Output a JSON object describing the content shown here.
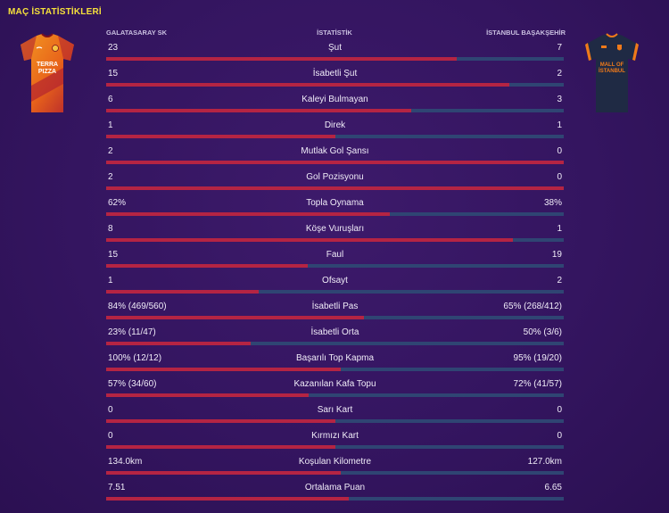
{
  "title": "MAÇ İSTATİSTİKLERİ",
  "header": {
    "home_team": "GALATASARAY SK",
    "column_title": "İSTATİSTİK",
    "away_team": "İSTANBUL BAŞAKŞEHİR"
  },
  "home_kit": {
    "sponsor_line1": "TERRA",
    "sponsor_line2": "PIZZA",
    "colors": [
      "#f07a1a",
      "#b3232f"
    ]
  },
  "away_kit": {
    "sponsor_line1": "MALL OF",
    "sponsor_line2": "İSTANBUL",
    "colors": [
      "#1f2a44",
      "#f07a1a"
    ]
  },
  "colors": {
    "home_bar": "#b52443",
    "away_bar": "#2f4573",
    "title": "#f5e03b"
  },
  "stats": [
    {
      "label": "Şut",
      "home": "23",
      "away": "7",
      "home_share": 0.767
    },
    {
      "label": "İsabetli Şut",
      "home": "15",
      "away": "2",
      "home_share": 0.882
    },
    {
      "label": "Kaleyi Bulmayan",
      "home": "6",
      "away": "3",
      "home_share": 0.667
    },
    {
      "label": "Direk",
      "home": "1",
      "away": "1",
      "home_share": 0.5
    },
    {
      "label": "Mutlak Gol Şansı",
      "home": "2",
      "away": "0",
      "home_share": 1.0
    },
    {
      "label": "Gol Pozisyonu",
      "home": "2",
      "away": "0",
      "home_share": 1.0
    },
    {
      "label": "Topla Oynama",
      "home": "62%",
      "away": "38%",
      "home_share": 0.62
    },
    {
      "label": "Köşe Vuruşları",
      "home": "8",
      "away": "1",
      "home_share": 0.889
    },
    {
      "label": "Faul",
      "home": "15",
      "away": "19",
      "home_share": 0.441
    },
    {
      "label": "Ofsayt",
      "home": "1",
      "away": "2",
      "home_share": 0.333
    },
    {
      "label": "İsabetli Pas",
      "home": "84% (469/560)",
      "away": "65% (268/412)",
      "home_share": 0.564
    },
    {
      "label": "İsabetli Orta",
      "home": "23% (11/47)",
      "away": "50% (3/6)",
      "home_share": 0.315
    },
    {
      "label": "Başarılı Top Kapma",
      "home": "100% (12/12)",
      "away": "95% (19/20)",
      "home_share": 0.513
    },
    {
      "label": "Kazanılan Kafa Topu",
      "home": "57% (34/60)",
      "away": "72% (41/57)",
      "home_share": 0.442
    },
    {
      "label": "Sarı Kart",
      "home": "0",
      "away": "0",
      "home_share": 0.5
    },
    {
      "label": "Kırmızı Kart",
      "home": "0",
      "away": "0",
      "home_share": 0.5
    },
    {
      "label": "Koşulan Kilometre",
      "home": "134.0km",
      "away": "127.0km",
      "home_share": 0.513
    },
    {
      "label": "Ortalama Puan",
      "home": "7.51",
      "away": "6.65",
      "home_share": 0.53
    }
  ]
}
